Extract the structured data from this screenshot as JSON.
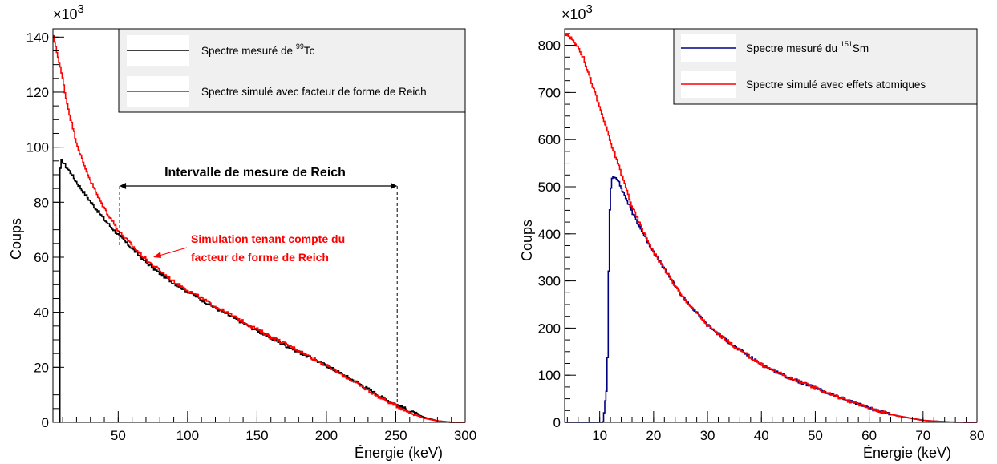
{
  "chart_data": [
    {
      "type": "line",
      "xlabel": "Énergie (keV)",
      "ylabel": "Coups",
      "y_multiplier_label": "×10",
      "y_multiplier_exponent": "3",
      "xlim": [
        3,
        300
      ],
      "ylim": [
        0,
        143
      ],
      "xticks": [
        50,
        100,
        150,
        200,
        250,
        300
      ],
      "xtick_labels": [
        "50",
        "100",
        "150",
        "200",
        "250",
        "300"
      ],
      "yticks": [
        0,
        20,
        40,
        60,
        80,
        100,
        120,
        140
      ],
      "ytick_labels": [
        "0",
        "20",
        "40",
        "60",
        "80",
        "100",
        "120",
        "140"
      ],
      "grid": false,
      "legend_position": "top-right",
      "series": [
        {
          "legend_prefix": "Spectre mesuré de ",
          "legend_sup": "99",
          "legend_suffix": "Tc",
          "color": "#000000",
          "x": [
            7.2,
            7.3,
            7.8,
            8.3,
            9,
            10,
            12,
            15,
            20,
            25,
            30,
            40,
            50,
            60,
            70,
            80,
            90,
            100,
            120,
            140,
            160,
            180,
            200,
            220,
            240,
            250,
            260,
            270,
            280,
            290,
            300
          ],
          "y": [
            0,
            80,
            90,
            94.5,
            95,
            94.5,
            93,
            91,
            87,
            83.5,
            80,
            73.5,
            68,
            63,
            58,
            54,
            50.5,
            47.5,
            41.5,
            36,
            30.5,
            25.5,
            20.5,
            15,
            9,
            6.5,
            4,
            1.8,
            0.5,
            0,
            0
          ]
        },
        {
          "legend": "Spectre simulé avec facteur de forme de Reich",
          "color": "#ff0000",
          "x": [
            3,
            5,
            7,
            10,
            12,
            15,
            20,
            25,
            30,
            35,
            40,
            50,
            60,
            70,
            80,
            90,
            100,
            120,
            140,
            160,
            180,
            200,
            220,
            240,
            250,
            260,
            270,
            280,
            290,
            300
          ],
          "y": [
            140,
            136,
            131,
            124,
            118,
            111,
            101,
            93.5,
            87.5,
            82,
            77.5,
            69.5,
            64,
            59,
            55,
            51,
            48,
            42,
            36.5,
            31,
            26,
            20.5,
            14.5,
            8.5,
            6,
            3.5,
            1.5,
            0.5,
            0,
            0
          ]
        }
      ],
      "annotations": {
        "interval_label": "Intervalle de mesure de Reich",
        "interval_range": [
          51,
          251
        ],
        "simulation_note_line1": "Simulation tenant compte du",
        "simulation_note_line2": "facteur de forme de Reich"
      }
    },
    {
      "type": "line",
      "xlabel": "Énergie (keV)",
      "ylabel": "Coups",
      "y_multiplier_label": "×10",
      "y_multiplier_exponent": "3",
      "xlim": [
        3.5,
        80
      ],
      "ylim": [
        0,
        835
      ],
      "xticks": [
        10,
        20,
        30,
        40,
        50,
        60,
        70,
        80
      ],
      "xtick_labels": [
        "10",
        "20",
        "30",
        "40",
        "50",
        "60",
        "70",
        "80"
      ],
      "yticks": [
        0,
        100,
        200,
        300,
        400,
        500,
        600,
        700,
        800
      ],
      "ytick_labels": [
        "0",
        "100",
        "200",
        "300",
        "400",
        "500",
        "600",
        "700",
        "800"
      ],
      "grid": false,
      "legend_position": "top-right",
      "series": [
        {
          "legend_prefix": "Spectre mesuré du ",
          "legend_sup": "151",
          "legend_suffix": "Sm",
          "color": "#000080",
          "x": [
            3.5,
            10.5,
            11.3,
            11.7,
            12,
            12.3,
            13,
            14,
            16,
            18,
            20,
            25,
            30,
            35,
            40,
            45,
            50,
            55,
            60,
            65,
            70,
            75,
            80
          ],
          "y": [
            0,
            0,
            80,
            430,
            500,
            525,
            520,
            495,
            445,
            400,
            360,
            270,
            205,
            160,
            122,
            95,
            72,
            50,
            30,
            14,
            4,
            0.5,
            0
          ]
        },
        {
          "legend": "Spectre simulé avec effets atomiques",
          "color": "#ff0000",
          "x": [
            3.5,
            5,
            6,
            7,
            8,
            9,
            10,
            11,
            12,
            13,
            14,
            16,
            18,
            20,
            25,
            30,
            35,
            40,
            45,
            50,
            55,
            60,
            65,
            70,
            75,
            80
          ],
          "y": [
            825,
            810,
            795,
            770,
            735,
            700,
            665,
            630,
            590,
            560,
            525,
            455,
            405,
            360,
            270,
            205,
            160,
            122,
            95,
            72,
            50,
            30,
            14,
            4,
            0.5,
            0
          ]
        }
      ]
    }
  ]
}
